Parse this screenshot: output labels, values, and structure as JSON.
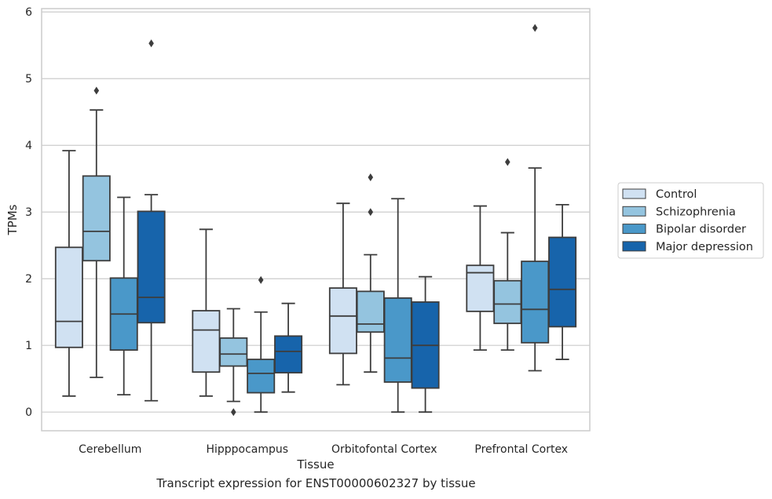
{
  "caption": "Transcript expression for ENST00000602327 by tissue",
  "chart_data": {
    "type": "boxplot",
    "xlabel": "Tissue",
    "ylabel": "TPMs",
    "ylim": [
      -0.28,
      6.05
    ],
    "yticks": [
      0,
      1,
      2,
      3,
      4,
      5,
      6
    ],
    "categories": [
      "Cerebellum",
      "Hipppocampus",
      "Orbitofontal Cortex",
      "Prefrontal Cortex"
    ],
    "grid": true,
    "legend_position": "right",
    "series": [
      {
        "name": "Control",
        "color": "#d0e1f2",
        "boxes": [
          {
            "whisker_low": 0.24,
            "q1": 0.97,
            "median": 1.36,
            "q3": 2.47,
            "whisker_high": 3.92,
            "outliers": []
          },
          {
            "whisker_low": 0.24,
            "q1": 0.6,
            "median": 1.23,
            "q3": 1.52,
            "whisker_high": 2.74,
            "outliers": []
          },
          {
            "whisker_low": 0.41,
            "q1": 0.88,
            "median": 1.44,
            "q3": 1.86,
            "whisker_high": 3.13,
            "outliers": []
          },
          {
            "whisker_low": 0.93,
            "q1": 1.51,
            "median": 2.09,
            "q3": 2.2,
            "whisker_high": 3.09,
            "outliers": []
          }
        ]
      },
      {
        "name": "Schizophrenia",
        "color": "#94c4df",
        "boxes": [
          {
            "whisker_low": 0.52,
            "q1": 2.27,
            "median": 2.71,
            "q3": 3.54,
            "whisker_high": 4.53,
            "outliers": [
              4.82
            ]
          },
          {
            "whisker_low": 0.16,
            "q1": 0.69,
            "median": 0.87,
            "q3": 1.11,
            "whisker_high": 1.55,
            "outliers": [
              0.0
            ]
          },
          {
            "whisker_low": 0.6,
            "q1": 1.2,
            "median": 1.32,
            "q3": 1.81,
            "whisker_high": 2.36,
            "outliers": [
              3.0,
              3.52
            ]
          },
          {
            "whisker_low": 0.93,
            "q1": 1.33,
            "median": 1.62,
            "q3": 1.97,
            "whisker_high": 2.69,
            "outliers": [
              3.75
            ]
          }
        ]
      },
      {
        "name": "Bipolar disorder",
        "color": "#4a98c9",
        "boxes": [
          {
            "whisker_low": 0.26,
            "q1": 0.93,
            "median": 1.47,
            "q3": 2.01,
            "whisker_high": 3.22,
            "outliers": []
          },
          {
            "whisker_low": 0.0,
            "q1": 0.29,
            "median": 0.58,
            "q3": 0.79,
            "whisker_high": 1.5,
            "outliers": [
              1.98
            ]
          },
          {
            "whisker_low": 0.0,
            "q1": 0.45,
            "median": 0.81,
            "q3": 1.71,
            "whisker_high": 3.2,
            "outliers": []
          },
          {
            "whisker_low": 0.62,
            "q1": 1.04,
            "median": 1.54,
            "q3": 2.26,
            "whisker_high": 3.66,
            "outliers": [
              5.76
            ]
          }
        ]
      },
      {
        "name": "Major depression",
        "color": "#1764ab",
        "boxes": [
          {
            "whisker_low": 0.17,
            "q1": 1.34,
            "median": 1.72,
            "q3": 3.01,
            "whisker_high": 3.26,
            "outliers": [
              5.53
            ]
          },
          {
            "whisker_low": 0.3,
            "q1": 0.59,
            "median": 0.91,
            "q3": 1.14,
            "whisker_high": 1.63,
            "outliers": []
          },
          {
            "whisker_low": 0.0,
            "q1": 0.36,
            "median": 1.0,
            "q3": 1.65,
            "whisker_high": 2.03,
            "outliers": []
          },
          {
            "whisker_low": 0.79,
            "q1": 1.28,
            "median": 1.84,
            "q3": 2.62,
            "whisker_high": 3.11,
            "outliers": []
          }
        ]
      }
    ]
  }
}
